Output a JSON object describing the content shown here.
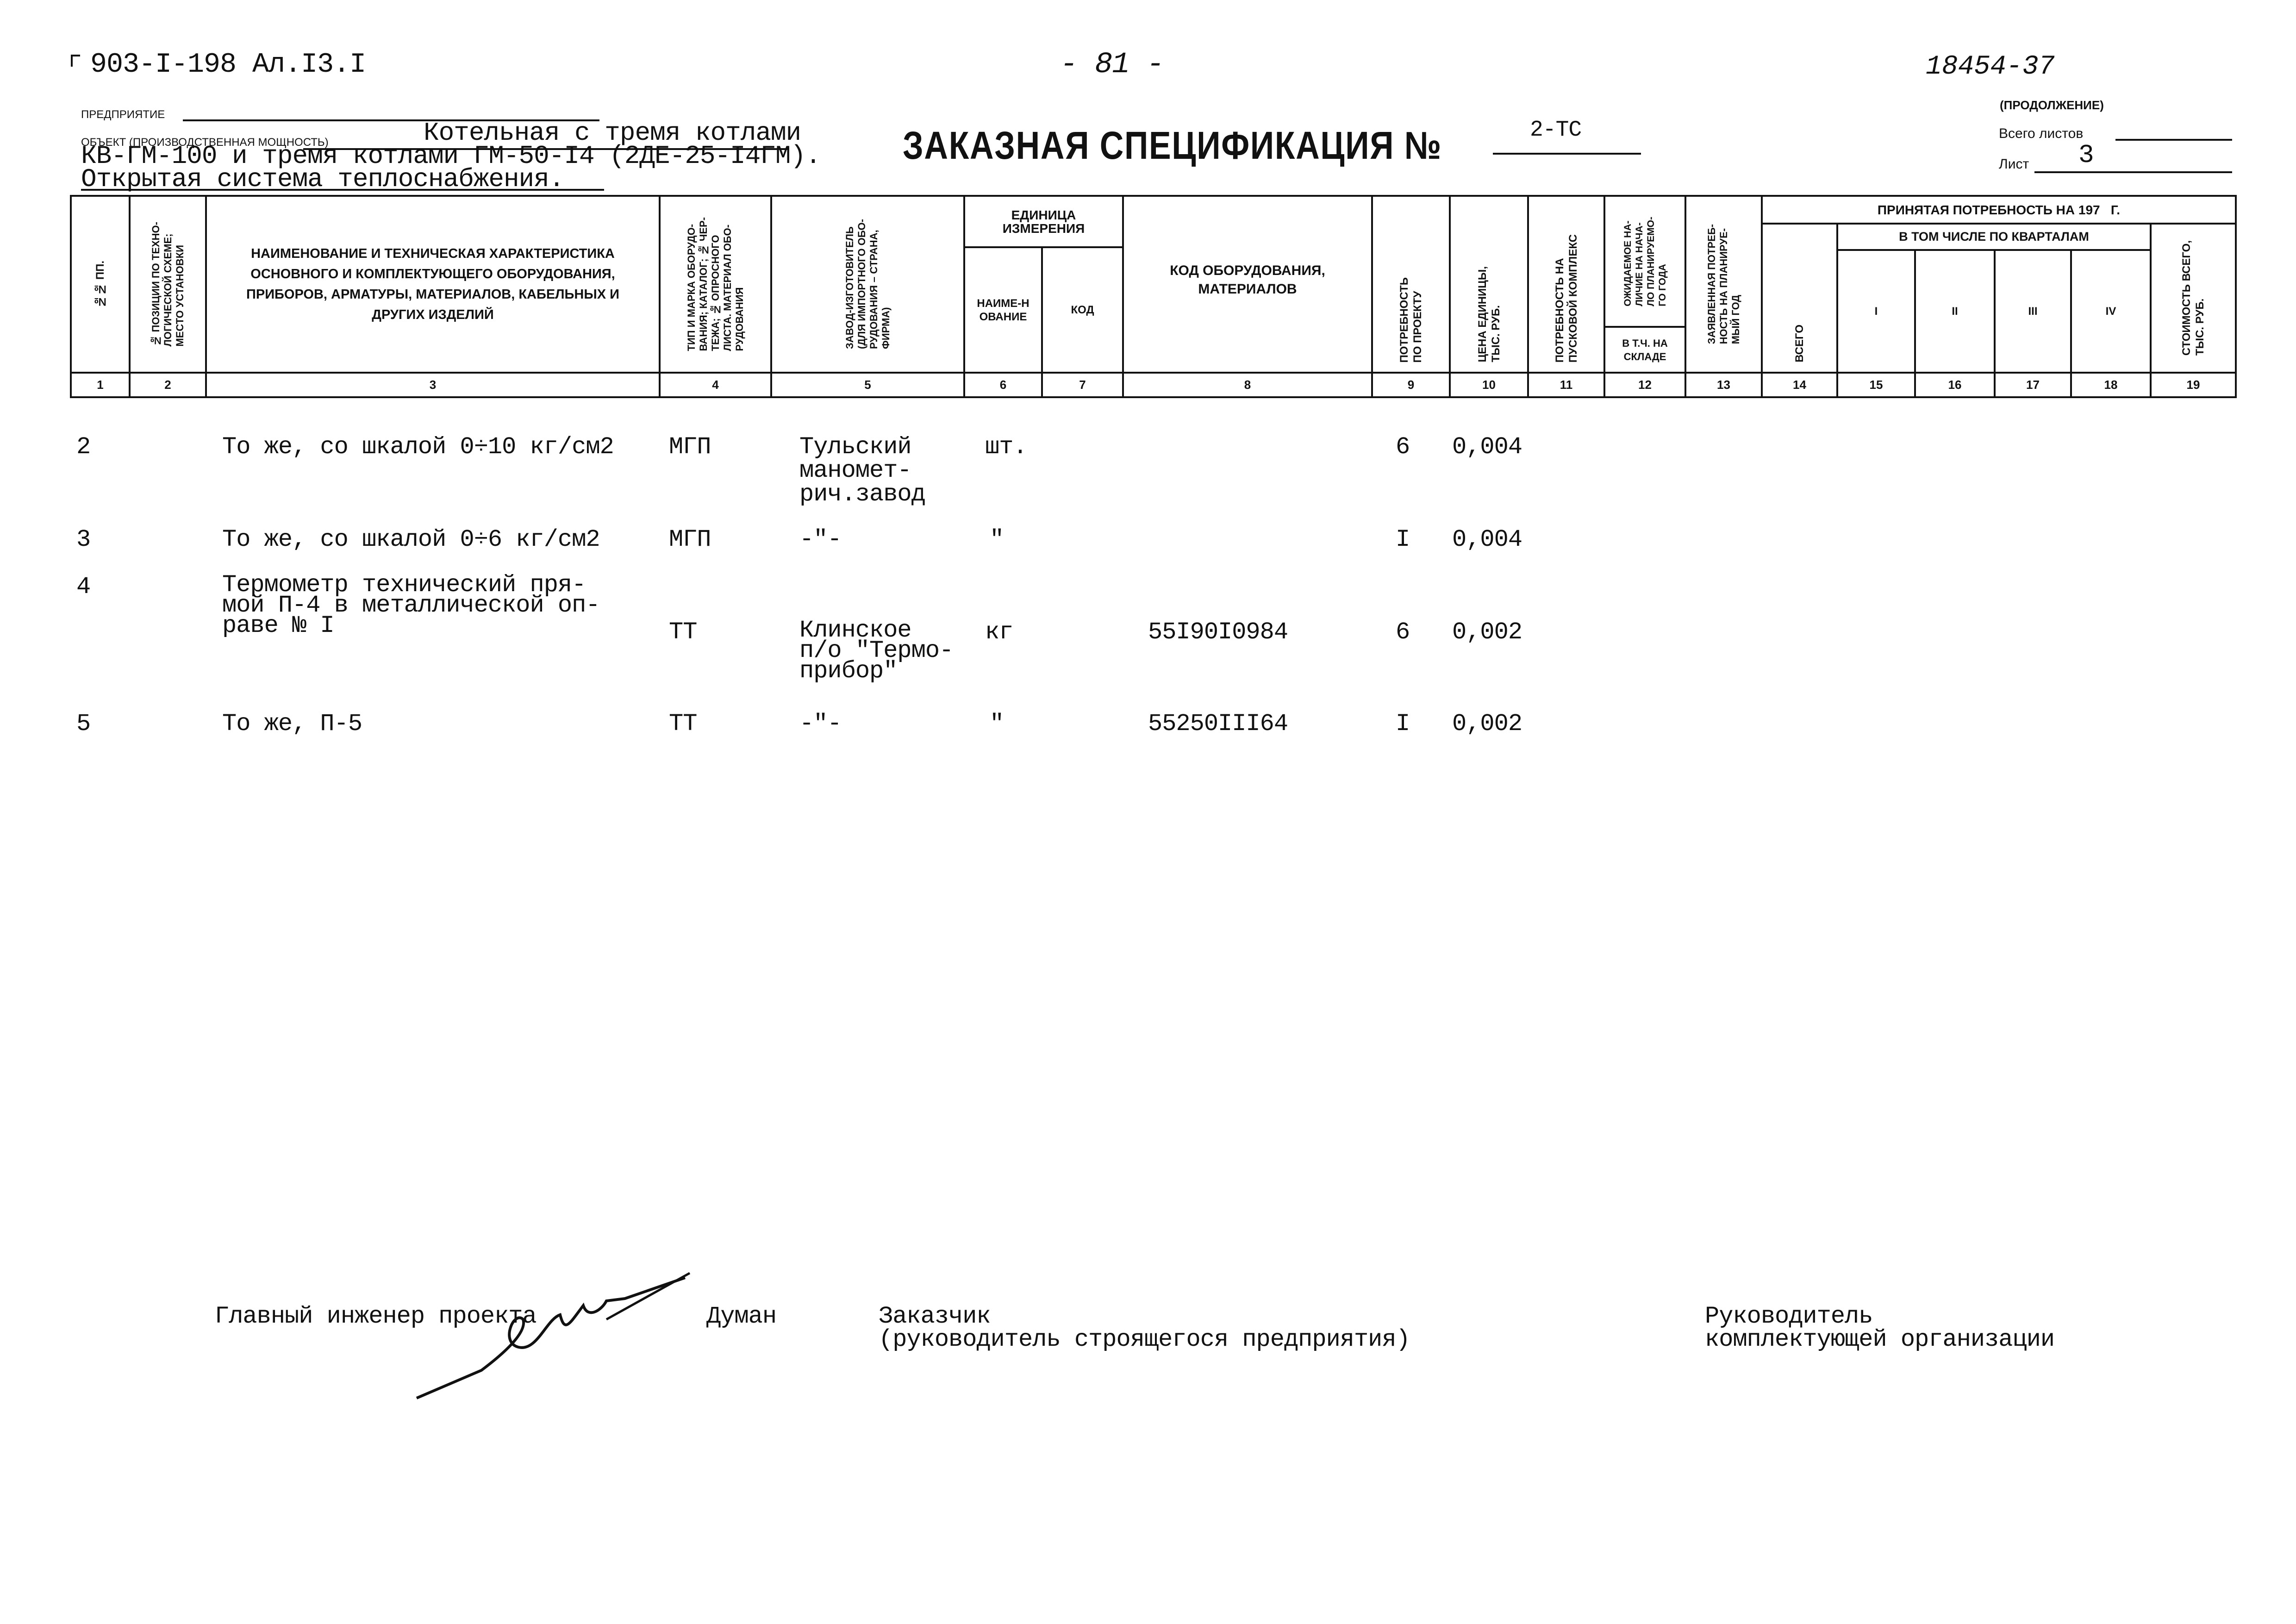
{
  "header": {
    "doc_code": "903-I-198 Ал.I3.I",
    "page_number": "- 81 -",
    "inventory_number": "18454-37",
    "enterprise_label": "Предприятие",
    "object_label": "Объект (производственная мощность)",
    "object_lines": [
      "Котельная с тремя котлами",
      "КВ-ГМ-100 и тремя котлами ГМ-50-I4 (2ДЕ-25-I4ГМ).",
      "Открытая система теплоснабжения."
    ],
    "title": "ЗАКАЗНАЯ СПЕЦИФИКАЦИЯ №",
    "spec_number": "2-ТС",
    "continuation": "(продолжение)",
    "total_sheets_label": "Всего листов",
    "total_sheets_value": "",
    "sheet_label": "Лист",
    "sheet_value": "3"
  },
  "table": {
    "headers": {
      "c1": "№№ пп.",
      "c2": "№ позиции по техно-\nлогической схеме;\nместо установки",
      "c3": "Наименование и техническая характеристика основного и комплектующего оборудования, приборов, арматуры, материалов, кабельных и других изделий",
      "c4": "Тип и марка оборудо-\nвания; каталог; № чер-\nтежа; № опросного\nлиста. Материал обо-\nрудования",
      "c5": "Завод-изготовитель\n(для импортного обо-\nрудования – страна,\nфирма)",
      "unit_group": "Единица измерения",
      "c6": "наиме-нование",
      "c7": "код",
      "c8": "Код оборудования, материалов",
      "c9": "Потребность\nпо проекту",
      "c10": "Цена единицы,\nтыс. руб.",
      "c11": "Потребность на\nпусковой комплекс",
      "c12_top": "Ожидаемое на-\nличие на нача-\nло планируемо-\nго года",
      "c12_bottom": "в т.ч. на складе",
      "c13": "Заявленная потреб-\nность на планируе-\nмый год",
      "accepted_group": "Принятая потребность на 197   г.",
      "c14": "Всего",
      "quarter_group": "В том числе по кварталам",
      "c15": "I",
      "c16": "II",
      "c17": "III",
      "c18": "IV",
      "c19": "Стоимость всего,\nтыс. руб."
    },
    "column_numbers": [
      "1",
      "2",
      "3",
      "4",
      "5",
      "6",
      "7",
      "8",
      "9",
      "10",
      "11",
      "12",
      "13",
      "14",
      "15",
      "16",
      "17",
      "18",
      "19"
    ],
    "rows": [
      {
        "no": "2",
        "name": "То же, со шкалой 0÷10 кг/см2",
        "type": "МГП",
        "manufacturer": "Тульский\nманомет-\nрич.завод",
        "unit": "шт.",
        "code": "",
        "qty": "6",
        "price": "0,004"
      },
      {
        "no": "3",
        "name": "То же, со шкалой 0÷6 кг/см2",
        "type": "МГП",
        "manufacturer": "-\"-",
        "unit": "\"",
        "code": "",
        "qty": "I",
        "price": "0,004"
      },
      {
        "no": "4",
        "name": "Термометр технический пря-\nмой П-4 в металлической оп-\nраве № I",
        "type": "ТТ",
        "manufacturer": "Клинское\nп/о \"Термо-\nприбор\"",
        "unit": "кг",
        "code": "55I90I0984",
        "qty": "6",
        "price": "0,002"
      },
      {
        "no": "5",
        "name": "То же, П-5",
        "type": "ТТ",
        "manufacturer": "-\"-",
        "unit": "\"",
        "code": "55250III64",
        "qty": "I",
        "price": "0,002"
      }
    ]
  },
  "footer": {
    "chief_engineer_label": "Главный инженер проекта",
    "chief_engineer_name": "Думан",
    "customer_label": "Заказчик",
    "customer_sub": "(руководитель строящегося предприятия)",
    "supplier_label": "Руководитель",
    "supplier_sub": "комплектующей организации"
  }
}
